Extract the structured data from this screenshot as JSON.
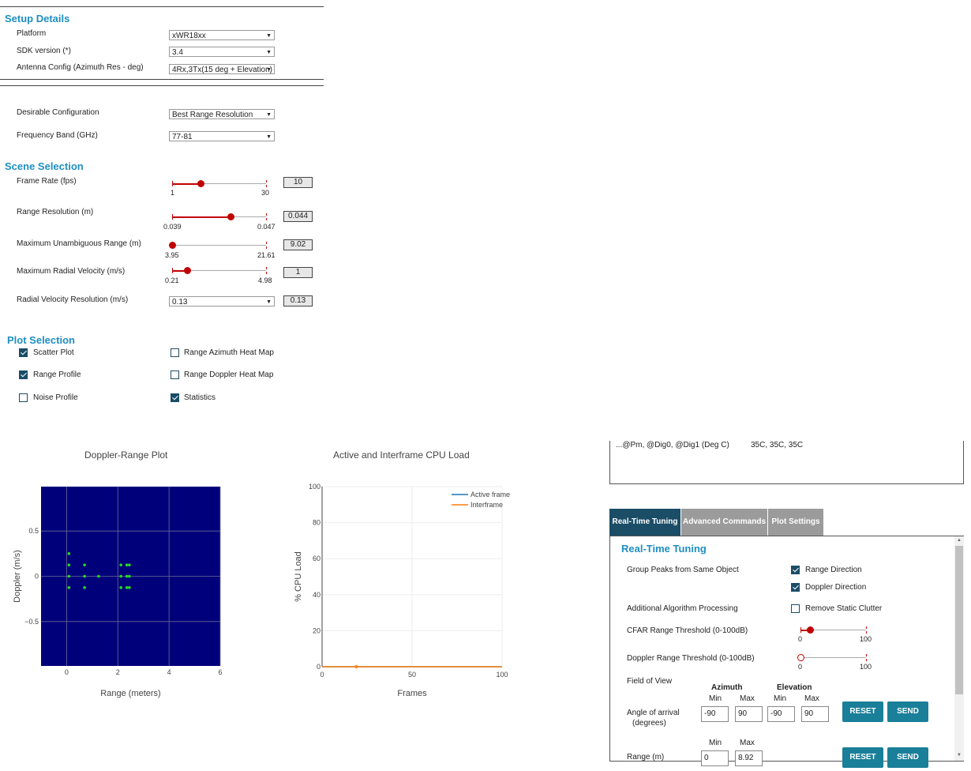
{
  "setup": {
    "title": "Setup Details",
    "platform": {
      "label": "Platform",
      "value": "xWR18xx"
    },
    "sdk": {
      "label": "SDK version (*)",
      "value": "3.4"
    },
    "antenna": {
      "label": "Antenna Config (Azimuth Res - deg)",
      "value": "4Rx,3Tx(15 deg + Elevation)"
    },
    "desirable": {
      "label": "Desirable Configuration",
      "value": "Best Range Resolution"
    },
    "band": {
      "label": "Frequency Band (GHz)",
      "value": "77-81"
    }
  },
  "scene": {
    "title": "Scene Selection",
    "frame_rate": {
      "label": "Frame Rate (fps)",
      "min": "1",
      "max": "30",
      "value": "10",
      "level": 0.31
    },
    "range_res": {
      "label": "Range Resolution (m)",
      "min": "0.039",
      "max": "0.047",
      "value": "0.044",
      "level": 0.625
    },
    "max_range": {
      "label": "Maximum Unambiguous Range (m)",
      "min": "3.95",
      "max": "21.61",
      "value": "9.02",
      "level": 0.0
    },
    "max_vel": {
      "label": "Maximum Radial Velocity (m/s)",
      "min": "0.21",
      "max": "4.98",
      "value": "1",
      "level": 0.16
    },
    "vel_res": {
      "label": "Radial Velocity Resolution (m/s)",
      "select": "0.13",
      "value": "0.13"
    }
  },
  "plots": {
    "title": "Plot Selection",
    "scatter": {
      "label": "Scatter Plot",
      "checked": true
    },
    "range_profile": {
      "label": "Range Profile",
      "checked": true
    },
    "noise_profile": {
      "label": "Noise Profile",
      "checked": false
    },
    "range_azimuth": {
      "label": "Range Azimuth Heat Map",
      "checked": false
    },
    "range_doppler": {
      "label": "Range Doppler Heat Map",
      "checked": false
    },
    "statistics": {
      "label": "Statistics",
      "checked": true
    }
  },
  "stats": {
    "temp_label": "...@Pm, @Dig0, @Dig1 (Deg C)",
    "temp_value": "35C, 35C, 35C"
  },
  "tabs": {
    "realtime": "Real-Time Tuning",
    "advanced": "Advanced Commands",
    "plot_settings": "Plot Settings"
  },
  "tuning": {
    "title": "Real-Time Tuning",
    "group_peaks": "Group Peaks from Same Object",
    "range_direction": "Range Direction",
    "doppler_direction": "Doppler Direction",
    "additional": "Additional Algorithm Processing",
    "remove_clutter": "Remove Static Clutter",
    "cfar_range": {
      "label": "CFAR Range Threshold (0-100dB)",
      "min": "0",
      "max": "100",
      "level": 0.15
    },
    "doppler_range": {
      "label": "Doppler Range Threshold (0-100dB)",
      "min": "0",
      "max": "100",
      "level": 0.0
    },
    "fov": "Field of View",
    "azimuth": "Azimuth",
    "elevation": "Elevation",
    "min": "Min",
    "max": "Max",
    "aoa_label_1": "Angle of arrival",
    "aoa_label_2": "(degrees)",
    "az_min": "-90",
    "az_max": "90",
    "el_min": "-90",
    "el_max": "90",
    "range_label": "Range (m)",
    "range_min": "0",
    "range_max": "8.92",
    "reset": "RESET",
    "send": "SEND"
  },
  "chart_data": [
    {
      "type": "scatter",
      "title": "Doppler-Range Plot",
      "xlabel": "Range (meters)",
      "ylabel": "Doppler (m/s)",
      "xlim": [
        -1,
        6
      ],
      "ylim": [
        -0.99,
        0.99
      ],
      "xticks": [
        "0",
        "2",
        "4",
        "6"
      ],
      "yticks": [
        "0.5",
        "0",
        "−0.5"
      ],
      "background": "#00007a",
      "point_color": "#22dd22",
      "points": [
        {
          "x": 0.09,
          "y": 0.25
        },
        {
          "x": 0.09,
          "y": 0.125
        },
        {
          "x": 0.09,
          "y": 0.0
        },
        {
          "x": 0.09,
          "y": -0.125
        },
        {
          "x": 0.7,
          "y": 0.125
        },
        {
          "x": 0.7,
          "y": 0.0
        },
        {
          "x": 0.7,
          "y": -0.125
        },
        {
          "x": 1.25,
          "y": 0.0
        },
        {
          "x": 2.12,
          "y": 0.125
        },
        {
          "x": 2.12,
          "y": 0.0
        },
        {
          "x": 2.12,
          "y": -0.125
        },
        {
          "x": 2.35,
          "y": 0.125
        },
        {
          "x": 2.35,
          "y": 0.0
        },
        {
          "x": 2.35,
          "y": -0.125
        },
        {
          "x": 2.45,
          "y": 0.125
        },
        {
          "x": 2.45,
          "y": 0.0
        },
        {
          "x": 2.45,
          "y": -0.125
        }
      ]
    },
    {
      "type": "line",
      "title": "Active and Interframe  CPU Load",
      "xlabel": "Frames",
      "ylabel": "% CPU Load",
      "xlim": [
        0,
        100
      ],
      "ylim": [
        0,
        100
      ],
      "xticks": [
        "0",
        "50",
        "100"
      ],
      "yticks": [
        "0",
        "20",
        "40",
        "60",
        "80",
        "100"
      ],
      "legend": "top-right",
      "series": [
        {
          "name": "Active frame",
          "color": "#1f77b4",
          "x": [
            0,
            100
          ],
          "y": [
            0,
            0
          ]
        },
        {
          "name": "Interframe",
          "color": "#ff7f0e",
          "x": [
            0,
            100
          ],
          "y": [
            0,
            0
          ]
        }
      ],
      "marker": {
        "x": 19,
        "y": 0
      }
    }
  ]
}
